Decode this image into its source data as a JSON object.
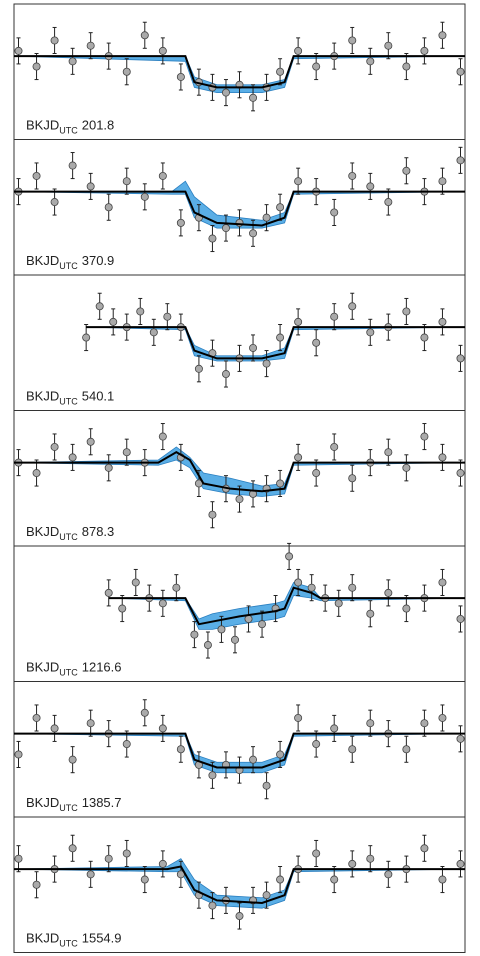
{
  "chart_data": [
    {
      "type": "scatter",
      "label": "BKJD",
      "label_sub": "UTC",
      "time": 201.8,
      "xlim": [
        0,
        100
      ],
      "ylim": [
        -1.6,
        1.0
      ],
      "error": 0.25,
      "color": "#aaaaaa",
      "band_color": "#5aaee6",
      "x": [
        1,
        5,
        9,
        13,
        17,
        21,
        25,
        29,
        33,
        37,
        41,
        44,
        47,
        50,
        53,
        56,
        59,
        63,
        67,
        71,
        75,
        79,
        83,
        87,
        91,
        95,
        99
      ],
      "values": [
        0.1,
        -0.2,
        0.3,
        -0.1,
        0.2,
        0.0,
        -0.3,
        0.4,
        0.1,
        -0.4,
        -0.5,
        -0.6,
        -0.7,
        -0.55,
        -0.8,
        -0.6,
        -0.3,
        0.1,
        -0.2,
        0.0,
        0.3,
        -0.1,
        0.2,
        -0.2,
        0.1,
        0.4,
        -0.3
      ],
      "model_x": [
        0,
        38,
        40,
        45,
        55,
        60,
        62,
        100
      ],
      "model": [
        0,
        0,
        -0.5,
        -0.6,
        -0.6,
        -0.5,
        0,
        0
      ],
      "band_upper": [
        0,
        0,
        -0.4,
        -0.55,
        -0.55,
        -0.45,
        0,
        0
      ],
      "band_lower": [
        0,
        -0.1,
        -0.6,
        -0.7,
        -0.7,
        -0.6,
        -0.05,
        0
      ]
    },
    {
      "type": "scatter",
      "label": "BKJD",
      "label_sub": "UTC",
      "time": 370.9,
      "xlim": [
        0,
        100
      ],
      "ylim": [
        -1.6,
        1.0
      ],
      "error": 0.25,
      "color": "#aaaaaa",
      "band_color": "#5aaee6",
      "x": [
        1,
        5,
        9,
        13,
        17,
        21,
        25,
        29,
        33,
        37,
        41,
        44,
        47,
        50,
        53,
        56,
        59,
        63,
        67,
        71,
        75,
        79,
        83,
        87,
        91,
        95,
        99
      ],
      "values": [
        0.0,
        0.3,
        -0.2,
        0.5,
        0.1,
        -0.3,
        0.2,
        -0.1,
        0.3,
        -0.6,
        -0.5,
        -0.9,
        -0.7,
        -0.6,
        -0.8,
        -0.5,
        -0.3,
        0.2,
        0.0,
        -0.4,
        0.3,
        0.1,
        -0.2,
        0.4,
        0.0,
        0.2,
        0.6
      ],
      "model_x": [
        0,
        35,
        38,
        40,
        45,
        55,
        60,
        62,
        100
      ],
      "model": [
        0,
        0,
        0,
        -0.4,
        -0.6,
        -0.65,
        -0.5,
        0,
        0
      ],
      "band_upper": [
        0,
        0,
        0.2,
        -0.1,
        -0.45,
        -0.55,
        -0.4,
        0,
        0
      ],
      "band_lower": [
        0,
        -0.05,
        -0.05,
        -0.5,
        -0.7,
        -0.7,
        -0.6,
        -0.05,
        0
      ]
    },
    {
      "type": "scatter",
      "label": "BKJD",
      "label_sub": "UTC",
      "time": 540.1,
      "xlim": [
        0,
        100
      ],
      "ylim": [
        -1.6,
        1.0
      ],
      "error": 0.25,
      "color": "#aaaaaa",
      "band_color": "#5aaee6",
      "x": [
        16,
        19,
        22,
        25,
        28,
        31,
        34,
        37,
        41,
        44,
        47,
        50,
        53,
        56,
        59,
        63,
        67,
        71,
        75,
        79,
        83,
        87,
        91,
        95,
        99
      ],
      "values": [
        -0.2,
        0.4,
        0.1,
        0.0,
        0.3,
        -0.1,
        0.2,
        0.0,
        -0.8,
        -0.5,
        -0.9,
        -0.6,
        -0.4,
        -0.7,
        -0.2,
        0.1,
        -0.3,
        0.2,
        0.4,
        -0.1,
        0.0,
        0.3,
        -0.2,
        0.1,
        -0.6
      ],
      "model_x": [
        16,
        38,
        40,
        45,
        55,
        60,
        62,
        100
      ],
      "model": [
        0,
        0,
        -0.45,
        -0.6,
        -0.6,
        -0.5,
        0,
        0
      ],
      "band_upper": [
        0,
        0,
        -0.35,
        -0.55,
        -0.55,
        -0.4,
        0,
        0
      ],
      "band_lower": [
        0,
        -0.05,
        -0.55,
        -0.65,
        -0.65,
        -0.6,
        -0.05,
        0
      ]
    },
    {
      "type": "scatter",
      "label": "BKJD",
      "label_sub": "UTC",
      "time": 878.3,
      "xlim": [
        0,
        100
      ],
      "ylim": [
        -1.6,
        1.0
      ],
      "error": 0.25,
      "color": "#aaaaaa",
      "band_color": "#5aaee6",
      "x": [
        1,
        5,
        9,
        13,
        17,
        21,
        25,
        29,
        33,
        37,
        41,
        44,
        47,
        50,
        53,
        56,
        59,
        63,
        67,
        71,
        75,
        79,
        83,
        87,
        91,
        95,
        99
      ],
      "values": [
        0.0,
        -0.2,
        0.3,
        0.1,
        0.4,
        -0.1,
        0.2,
        0.0,
        0.5,
        0.1,
        -0.4,
        -1.0,
        -0.5,
        -0.7,
        -0.6,
        -0.5,
        -0.4,
        0.1,
        -0.2,
        0.3,
        -0.3,
        0.0,
        0.2,
        -0.1,
        0.5,
        0.1,
        -0.2
      ],
      "model_x": [
        0,
        32,
        36,
        39,
        42,
        48,
        55,
        60,
        62,
        100
      ],
      "model": [
        0,
        0,
        0.2,
        0.05,
        -0.4,
        -0.5,
        -0.55,
        -0.5,
        0,
        0
      ],
      "band_upper": [
        0,
        0.05,
        0.3,
        0.1,
        -0.2,
        -0.3,
        -0.45,
        -0.4,
        0,
        0
      ],
      "band_lower": [
        0,
        -0.05,
        0.05,
        -0.1,
        -0.5,
        -0.6,
        -0.65,
        -0.6,
        -0.05,
        0
      ]
    },
    {
      "type": "scatter",
      "label": "BKJD",
      "label_sub": "UTC",
      "time": 1216.6,
      "xlim": [
        0,
        100
      ],
      "ylim": [
        -1.6,
        1.0
      ],
      "error": 0.25,
      "color": "#aaaaaa",
      "band_color": "#5aaee6",
      "x": [
        21,
        24,
        27,
        30,
        33,
        36,
        40,
        43,
        46,
        49,
        52,
        55,
        58,
        61,
        63,
        66,
        69,
        72,
        75,
        79,
        83,
        87,
        91,
        95,
        99
      ],
      "values": [
        0.1,
        -0.2,
        0.3,
        0.0,
        -0.1,
        0.2,
        -0.7,
        -0.9,
        -0.6,
        -0.8,
        -0.4,
        -0.5,
        -0.2,
        0.8,
        0.3,
        0.2,
        0.0,
        -0.1,
        0.2,
        -0.3,
        0.1,
        -0.2,
        0.0,
        0.3,
        -0.4
      ],
      "model_x": [
        21,
        38,
        41,
        44,
        50,
        58,
        60,
        62,
        66,
        68,
        100
      ],
      "model": [
        0,
        0,
        -0.5,
        -0.45,
        -0.35,
        -0.25,
        -0.2,
        0.2,
        0.1,
        0,
        0
      ],
      "band_upper": [
        0,
        0,
        -0.4,
        -0.3,
        -0.2,
        -0.1,
        -0.05,
        0.3,
        0.2,
        0,
        0
      ],
      "band_lower": [
        0,
        -0.05,
        -0.6,
        -0.6,
        -0.5,
        -0.4,
        -0.35,
        0.05,
        0,
        -0.05,
        0
      ]
    },
    {
      "type": "scatter",
      "label": "BKJD",
      "label_sub": "UTC",
      "time": 1385.7,
      "xlim": [
        0,
        100
      ],
      "ylim": [
        -1.6,
        1.0
      ],
      "error": 0.25,
      "color": "#aaaaaa",
      "band_color": "#5aaee6",
      "x": [
        1,
        5,
        9,
        13,
        17,
        21,
        25,
        29,
        33,
        37,
        41,
        44,
        47,
        50,
        53,
        56,
        59,
        63,
        67,
        71,
        75,
        79,
        83,
        87,
        91,
        95,
        99
      ],
      "values": [
        -0.4,
        0.3,
        0.1,
        -0.5,
        0.2,
        0.0,
        -0.2,
        0.4,
        0.1,
        -0.3,
        -0.6,
        -0.8,
        -0.6,
        -0.7,
        -0.5,
        -1.0,
        -0.4,
        0.3,
        -0.2,
        0.1,
        -0.3,
        0.2,
        0.0,
        -0.3,
        0.2,
        0.3,
        -0.1
      ],
      "model_x": [
        0,
        38,
        40,
        45,
        55,
        60,
        62,
        100
      ],
      "model": [
        0,
        0,
        -0.5,
        -0.65,
        -0.65,
        -0.5,
        0,
        0
      ],
      "band_upper": [
        0,
        0,
        -0.4,
        -0.55,
        -0.55,
        -0.4,
        0,
        0
      ],
      "band_lower": [
        0,
        -0.05,
        -0.6,
        -0.75,
        -0.75,
        -0.6,
        -0.05,
        0
      ]
    },
    {
      "type": "scatter",
      "label": "BKJD",
      "label_sub": "UTC",
      "time": 1554.9,
      "xlim": [
        0,
        100
      ],
      "ylim": [
        -1.6,
        1.0
      ],
      "error": 0.25,
      "color": "#aaaaaa",
      "band_color": "#5aaee6",
      "x": [
        1,
        5,
        9,
        13,
        17,
        21,
        25,
        29,
        33,
        37,
        41,
        44,
        47,
        50,
        53,
        56,
        59,
        63,
        67,
        71,
        75,
        79,
        83,
        87,
        91,
        95,
        99
      ],
      "values": [
        0.2,
        -0.3,
        0.0,
        0.4,
        -0.1,
        0.2,
        0.3,
        -0.2,
        0.1,
        -0.1,
        -0.5,
        -0.7,
        -0.6,
        -0.9,
        -0.6,
        -0.5,
        -0.2,
        0.0,
        0.3,
        -0.2,
        0.1,
        0.2,
        -0.1,
        0.0,
        0.4,
        -0.2,
        0.1
      ],
      "model_x": [
        0,
        34,
        37,
        40,
        45,
        55,
        60,
        62,
        100
      ],
      "model": [
        0,
        0,
        0.05,
        -0.4,
        -0.6,
        -0.65,
        -0.5,
        0,
        0
      ],
      "band_upper": [
        0,
        0.05,
        0.2,
        -0.2,
        -0.5,
        -0.55,
        -0.4,
        0,
        0
      ],
      "band_lower": [
        0,
        -0.05,
        -0.05,
        -0.5,
        -0.7,
        -0.75,
        -0.6,
        -0.05,
        0
      ]
    }
  ]
}
